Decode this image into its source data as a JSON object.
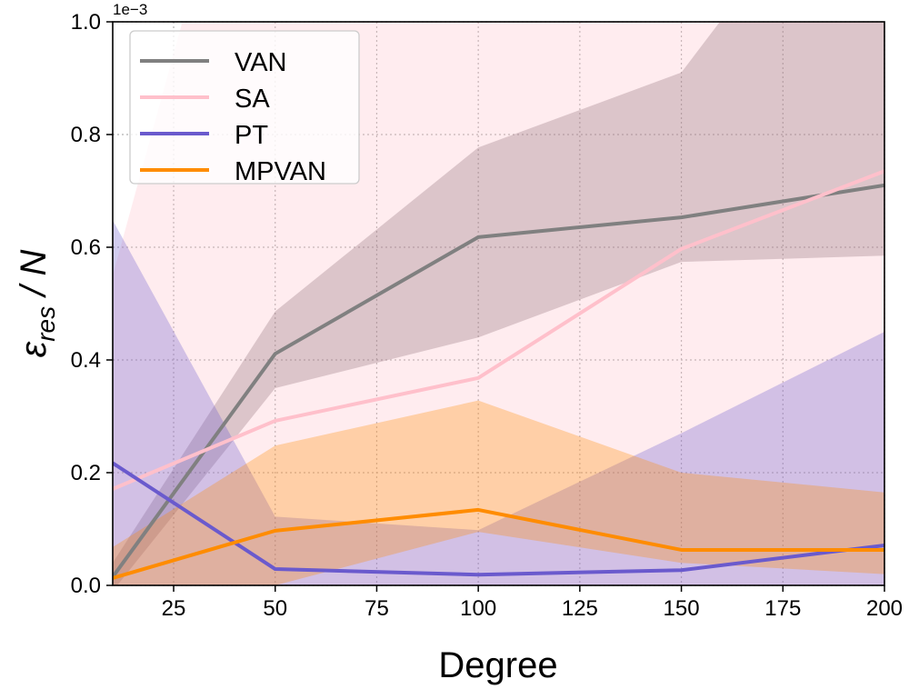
{
  "chart_data": {
    "type": "line",
    "title": "",
    "xlabel": "Degree",
    "ylabel_main": "ε",
    "ylabel_sub": "res",
    "ylabel_tail": " / N",
    "y_scale_label": "1e−3",
    "xlim": [
      10,
      200
    ],
    "ylim": [
      0,
      1.0
    ],
    "xticks": [
      25,
      50,
      75,
      100,
      125,
      150,
      175,
      200
    ],
    "yticks": [
      0.0,
      0.2,
      0.4,
      0.6,
      0.8,
      1.0
    ],
    "ytick_labels": [
      "0.0",
      "0.2",
      "0.4",
      "0.6",
      "0.8",
      "1.0"
    ],
    "grid": true,
    "legend_position": "top-left",
    "x": [
      10,
      50,
      100,
      150,
      200
    ],
    "series": [
      {
        "name": "VAN",
        "color": "#808080",
        "fill": "#8b6b73",
        "values": [
          0.015,
          0.411,
          0.618,
          0.653,
          0.71
        ],
        "lower": [
          -0.01,
          0.35,
          0.44,
          0.574,
          0.585
        ],
        "upper": [
          0.04,
          0.486,
          0.777,
          0.91,
          1.385
        ]
      },
      {
        "name": "SA",
        "color": "#ffc0cb",
        "fill": "#ffc0cb",
        "values": [
          0.171,
          0.292,
          0.368,
          0.597,
          0.735
        ],
        "lower": [
          -0.1,
          -0.1,
          -0.1,
          -0.1,
          -0.1
        ],
        "upper": [
          0.55,
          1.6,
          1.8,
          2.0,
          2.2
        ]
      },
      {
        "name": "PT",
        "color": "#6a5acd",
        "fill": "#6a5acd",
        "values": [
          0.217,
          0.029,
          0.019,
          0.027,
          0.071
        ],
        "lower": [
          -0.02,
          -0.01,
          0.0,
          0.0,
          0.0
        ],
        "upper": [
          0.648,
          0.122,
          0.098,
          0.27,
          0.45
        ]
      },
      {
        "name": "MPVAN",
        "color": "#ff8c00",
        "fill": "#ff8c00",
        "values": [
          0.013,
          0.097,
          0.134,
          0.063,
          0.063
        ],
        "lower": [
          0.0,
          0.0,
          0.095,
          0.04,
          0.02
        ],
        "upper": [
          0.068,
          0.248,
          0.328,
          0.2,
          0.165
        ]
      }
    ]
  }
}
